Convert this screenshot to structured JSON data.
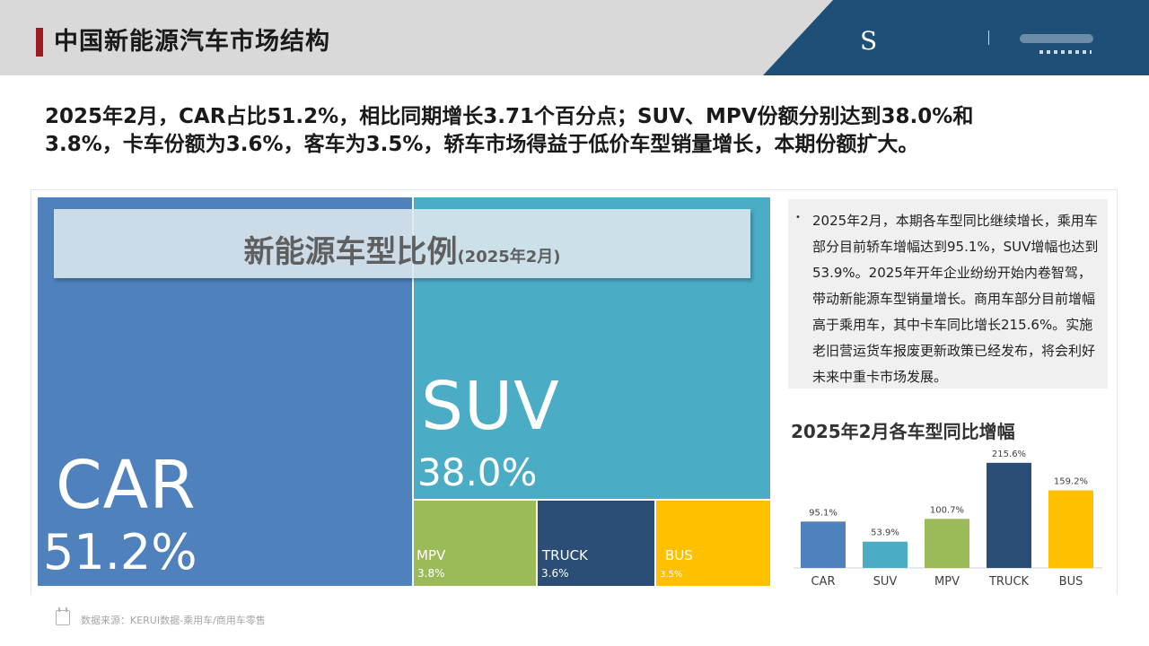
{
  "header": {
    "title": "中国新能源汽车市场结构",
    "brand_color": "#1e4f77",
    "accent_color": "#9e1b20",
    "logo_glyph": "S"
  },
  "summary": {
    "line1": "2025年2月，CAR占比51.2%，相比同期增长3.71个百分点；SUV、MPV份额分别达到38.0%和",
    "line2": "3.8%，卡车份额为3.6%，客车为3.5%，轿车市场得益于低价车型销量增长，本期份额扩大。"
  },
  "notes": {
    "bullet": "•",
    "text": "2025年2月，本期各车型同比继续增长，乘用车部分目前轿车增幅达到95.1%，SUV增幅也达到53.9%。2025年开年企业纷纷开始内卷智驾，带动新能源车型销量增长。商用车部分目前增幅高于乘用车，其中卡车同比增长215.6%。实施老旧营运货车报废更新政策已经发布，将会利好未来中重卡市场发展。"
  },
  "source": {
    "text": "数据来源：KERUI数据-乘用车/商用车零售"
  },
  "chart_data": [
    {
      "type": "treemap",
      "title": "新能源车型比例",
      "subtitle": "(2025年2月)",
      "categories": [
        "CAR",
        "SUV",
        "MPV",
        "TRUCK",
        "BUS"
      ],
      "values": [
        51.2,
        38.0,
        3.8,
        3.6,
        3.5
      ],
      "labels": [
        "51.2%",
        "38.0%",
        "3.8%",
        "3.6%",
        "3.5%"
      ],
      "colors": [
        "#4f81bd",
        "#4bacc6",
        "#9bbb59",
        "#2c4d75",
        "#ffc000"
      ]
    },
    {
      "type": "bar",
      "title": "2025年2月各车型同比增幅",
      "categories": [
        "CAR",
        "SUV",
        "MPV",
        "TRUCK",
        "BUS"
      ],
      "values": [
        95.1,
        53.9,
        100.7,
        215.6,
        159.2
      ],
      "labels": [
        "95.1%",
        "53.9%",
        "100.7%",
        "215.6%",
        "159.2%"
      ],
      "colors": [
        "#4f81bd",
        "#4bacc6",
        "#9bbb59",
        "#2c4d75",
        "#ffc000"
      ],
      "ylim": [
        0,
        230
      ],
      "grid": false,
      "legend": "none"
    }
  ]
}
